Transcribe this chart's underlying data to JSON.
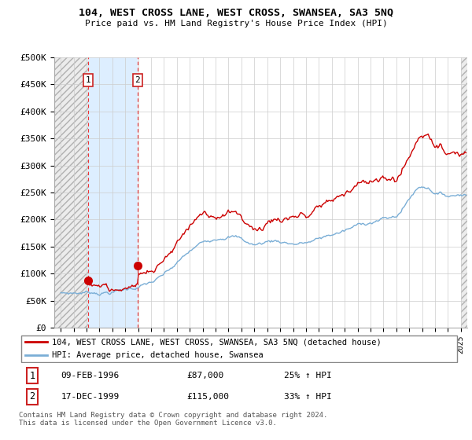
{
  "title": "104, WEST CROSS LANE, WEST CROSS, SWANSEA, SA3 5NQ",
  "subtitle": "Price paid vs. HM Land Registry's House Price Index (HPI)",
  "legend_line1": "104, WEST CROSS LANE, WEST CROSS, SWANSEA, SA3 5NQ (detached house)",
  "legend_line2": "HPI: Average price, detached house, Swansea",
  "footer": "Contains HM Land Registry data © Crown copyright and database right 2024.\nThis data is licensed under the Open Government Licence v3.0.",
  "sale1_label": "1",
  "sale1_date": "09-FEB-1996",
  "sale1_price": "£87,000",
  "sale1_hpi": "25% ↑ HPI",
  "sale1_year": 1996.12,
  "sale1_value": 87000,
  "sale2_label": "2",
  "sale2_date": "17-DEC-1999",
  "sale2_price": "£115,000",
  "sale2_hpi": "33% ↑ HPI",
  "sale2_year": 1999.96,
  "sale2_value": 115000,
  "ylim": [
    0,
    500000
  ],
  "yticks": [
    0,
    50000,
    100000,
    150000,
    200000,
    250000,
    300000,
    350000,
    400000,
    450000,
    500000
  ],
  "ytick_labels": [
    "£0",
    "£50K",
    "£100K",
    "£150K",
    "£200K",
    "£250K",
    "£300K",
    "£350K",
    "£400K",
    "£450K",
    "£500K"
  ],
  "hpi_color": "#7aaed6",
  "price_color": "#cc0000",
  "hatch_color": "#c8c8c8",
  "blue_fill_color": "#ddeeff",
  "grid_color": "#cccccc",
  "sale_line_color": "#ee3333",
  "marker_color": "#cc0000",
  "xlim_start": 1993.5,
  "xlim_end": 2025.5
}
